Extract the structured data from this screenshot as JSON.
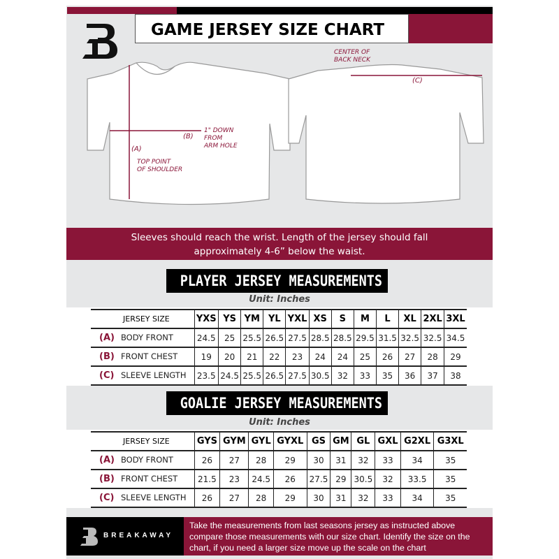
{
  "header": {
    "title": "GAME JERSEY SIZE CHART",
    "logo_letter": "B"
  },
  "diagram": {
    "label_a": "(A)",
    "label_a_desc": "TOP POINT\nOF SHOULDER",
    "label_b": "(B)",
    "label_b_desc": "1\" DOWN\nFROM\nARM HOLE",
    "label_c": "(C)",
    "label_c_desc": "CENTER OF\nBACK NECK"
  },
  "note": {
    "line1": "Sleeves should reach the wrist. Length of the jersey should fall",
    "line2": "approximately 4-6” below the waist."
  },
  "player": {
    "title": "PLAYER JERSEY MEASUREMENTS",
    "unit": "Unit: Inches",
    "size_header": "JERSEY SIZE",
    "sizes": [
      "YXS",
      "YS",
      "YM",
      "YL",
      "YXL",
      "XS",
      "S",
      "M",
      "L",
      "XL",
      "2XL",
      "3XL"
    ],
    "rows": [
      {
        "letter": "(A)",
        "label": "BODY FRONT",
        "values": [
          "24.5",
          "25",
          "25.5",
          "26.5",
          "27.5",
          "28.5",
          "28.5",
          "29.5",
          "31.5",
          "32.5",
          "32.5",
          "34.5"
        ]
      },
      {
        "letter": "(B)",
        "label": "FRONT CHEST",
        "values": [
          "19",
          "20",
          "21",
          "22",
          "23",
          "24",
          "24",
          "25",
          "26",
          "27",
          "28",
          "29"
        ]
      },
      {
        "letter": "(C)",
        "label": "SLEEVE LENGTH",
        "values": [
          "23.5",
          "24.5",
          "25.5",
          "26.5",
          "27.5",
          "30.5",
          "32",
          "33",
          "35",
          "36",
          "37",
          "38"
        ]
      }
    ]
  },
  "goalie": {
    "title": "GOALIE JERSEY MEASUREMENTS",
    "unit": "Unit: Inches",
    "size_header": "JERSEY SIZE",
    "sizes": [
      "GYS",
      "GYM",
      "GYL",
      "GYXL",
      "GS",
      "GM",
      "GL",
      "GXL",
      "G2XL",
      "G3XL"
    ],
    "rows": [
      {
        "letter": "(A)",
        "label": "BODY FRONT",
        "values": [
          "26",
          "27",
          "28",
          "29",
          "30",
          "31",
          "32",
          "33",
          "34",
          "35"
        ]
      },
      {
        "letter": "(B)",
        "label": "FRONT CHEST",
        "values": [
          "21.5",
          "23",
          "24.5",
          "26",
          "27.5",
          "29",
          "30.5",
          "32",
          "33.5",
          "35"
        ]
      },
      {
        "letter": "(C)",
        "label": "SLEEVE LENGTH",
        "values": [
          "26",
          "27",
          "28",
          "29",
          "30",
          "31",
          "32",
          "33",
          "34",
          "35"
        ]
      }
    ]
  },
  "footer": {
    "brand": "BREAKAWAY",
    "text": "Take the measurements from last seasons jersey as instructed above compare those measurements  with our size chart. Identify the size on the chart, if you need a larger size move up the scale on the chart"
  },
  "colors": {
    "accent": "#8a1538",
    "background": "#e6e7e8",
    "dark": "#000000"
  }
}
